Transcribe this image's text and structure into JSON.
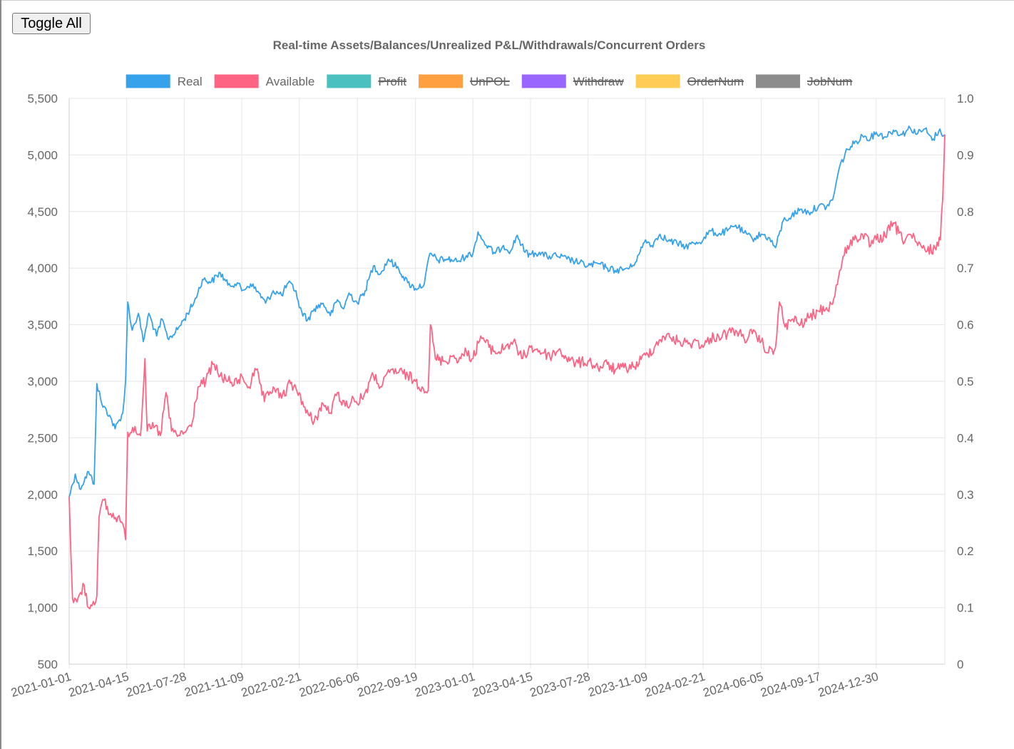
{
  "toolbar": {
    "toggle_all_label": "Toggle All"
  },
  "chart_data": {
    "type": "line",
    "title": "Real-time Assets/Balances/Unrealized P&L/Withdrawals/Concurrent Orders",
    "x_tick_labels": [
      "2021-01-01",
      "2021-04-15",
      "2021-07-28",
      "2021-11-09",
      "2022-02-21",
      "2022-06-06",
      "2022-09-19",
      "2023-01-01",
      "2023-04-15",
      "2023-07-28",
      "2023-11-09",
      "2024-02-21",
      "2024-06-05",
      "2024-09-17",
      "2024-12-30"
    ],
    "x_range": [
      "2021-01-01",
      "2025-05-03"
    ],
    "y_left": {
      "min": 500,
      "max": 5500,
      "ticks": [
        "500",
        "1,000",
        "1,500",
        "2,000",
        "2,500",
        "3,000",
        "3,500",
        "4,000",
        "4,500",
        "5,000",
        "5,500"
      ]
    },
    "y_right": {
      "min": 0,
      "max": 1.0,
      "ticks": [
        "0",
        "0.1",
        "0.2",
        "0.3",
        "0.4",
        "0.5",
        "0.6",
        "0.7",
        "0.8",
        "0.9",
        "1.0"
      ]
    },
    "grid": true,
    "legend_position": "top",
    "legend": [
      {
        "name": "Real",
        "color": "#36a2eb",
        "hidden": false
      },
      {
        "name": "Available",
        "color": "#ff6384",
        "hidden": false
      },
      {
        "name": "Profit",
        "color": "#4bc0c0",
        "hidden": true
      },
      {
        "name": "UnPOL",
        "color": "#ff9f40",
        "hidden": true
      },
      {
        "name": "Withdraw",
        "color": "#9966ff",
        "hidden": true
      },
      {
        "name": "OrderNum",
        "color": "#ffcd56",
        "hidden": true
      },
      {
        "name": "JobNum",
        "color": "#8c8c8c",
        "hidden": true
      }
    ],
    "series": [
      {
        "name": "Real",
        "color": "#36a2eb",
        "points": [
          [
            "2021-01-01",
            1980
          ],
          [
            "2021-01-12",
            2180
          ],
          [
            "2021-01-20",
            2050
          ],
          [
            "2021-02-05",
            2200
          ],
          [
            "2021-02-15",
            2090
          ],
          [
            "2021-02-20",
            2980
          ],
          [
            "2021-03-01",
            2800
          ],
          [
            "2021-03-15",
            2700
          ],
          [
            "2021-03-25",
            2580
          ],
          [
            "2021-04-08",
            2720
          ],
          [
            "2021-04-13",
            3000
          ],
          [
            "2021-04-17",
            3700
          ],
          [
            "2021-04-25",
            3450
          ],
          [
            "2021-05-06",
            3600
          ],
          [
            "2021-05-15",
            3350
          ],
          [
            "2021-05-25",
            3600
          ],
          [
            "2021-06-08",
            3400
          ],
          [
            "2021-06-18",
            3550
          ],
          [
            "2021-06-28",
            3380
          ],
          [
            "2021-07-12",
            3430
          ],
          [
            "2021-07-28",
            3550
          ],
          [
            "2021-08-15",
            3700
          ],
          [
            "2021-08-30",
            3900
          ],
          [
            "2021-09-15",
            3880
          ],
          [
            "2021-10-01",
            3960
          ],
          [
            "2021-10-15",
            3850
          ],
          [
            "2021-11-01",
            3870
          ],
          [
            "2021-11-09",
            3800
          ],
          [
            "2021-11-25",
            3860
          ],
          [
            "2021-12-10",
            3780
          ],
          [
            "2021-12-22",
            3690
          ],
          [
            "2022-01-05",
            3800
          ],
          [
            "2022-01-20",
            3760
          ],
          [
            "2022-02-01",
            3870
          ],
          [
            "2022-02-15",
            3800
          ],
          [
            "2022-02-21",
            3650
          ],
          [
            "2022-03-08",
            3540
          ],
          [
            "2022-03-20",
            3640
          ],
          [
            "2022-04-05",
            3690
          ],
          [
            "2022-04-18",
            3580
          ],
          [
            "2022-05-01",
            3720
          ],
          [
            "2022-05-12",
            3640
          ],
          [
            "2022-05-22",
            3780
          ],
          [
            "2022-06-06",
            3690
          ],
          [
            "2022-06-20",
            3800
          ],
          [
            "2022-07-05",
            4020
          ],
          [
            "2022-07-18",
            3950
          ],
          [
            "2022-08-01",
            4080
          ],
          [
            "2022-08-20",
            3990
          ],
          [
            "2022-09-05",
            3870
          ],
          [
            "2022-09-19",
            3820
          ],
          [
            "2022-10-05",
            3860
          ],
          [
            "2022-10-15",
            4130
          ],
          [
            "2022-10-30",
            4070
          ],
          [
            "2022-11-15",
            4080
          ],
          [
            "2022-12-05",
            4060
          ],
          [
            "2022-12-20",
            4110
          ],
          [
            "2023-01-01",
            4130
          ],
          [
            "2023-01-10",
            4320
          ],
          [
            "2023-01-25",
            4200
          ],
          [
            "2023-02-10",
            4130
          ],
          [
            "2023-02-25",
            4200
          ],
          [
            "2023-03-10",
            4150
          ],
          [
            "2023-03-22",
            4290
          ],
          [
            "2023-04-05",
            4140
          ],
          [
            "2023-04-15",
            4120
          ],
          [
            "2023-05-01",
            4140
          ],
          [
            "2023-05-15",
            4100
          ],
          [
            "2023-06-01",
            4110
          ],
          [
            "2023-06-20",
            4080
          ],
          [
            "2023-07-05",
            4060
          ],
          [
            "2023-07-28",
            4020
          ],
          [
            "2023-08-15",
            4040
          ],
          [
            "2023-09-01",
            4000
          ],
          [
            "2023-09-15",
            3980
          ],
          [
            "2023-10-01",
            3990
          ],
          [
            "2023-10-15",
            4010
          ],
          [
            "2023-10-28",
            4120
          ],
          [
            "2023-11-09",
            4250
          ],
          [
            "2023-11-20",
            4200
          ],
          [
            "2023-12-05",
            4300
          ],
          [
            "2023-12-20",
            4240
          ],
          [
            "2024-01-05",
            4220
          ],
          [
            "2024-01-20",
            4190
          ],
          [
            "2024-02-05",
            4220
          ],
          [
            "2024-02-21",
            4250
          ],
          [
            "2024-03-05",
            4330
          ],
          [
            "2024-03-20",
            4300
          ],
          [
            "2024-04-05",
            4330
          ],
          [
            "2024-04-20",
            4380
          ],
          [
            "2024-05-05",
            4310
          ],
          [
            "2024-05-20",
            4260
          ],
          [
            "2024-06-05",
            4300
          ],
          [
            "2024-06-18",
            4270
          ],
          [
            "2024-07-01",
            4180
          ],
          [
            "2024-07-15",
            4420
          ],
          [
            "2024-07-30",
            4460
          ],
          [
            "2024-08-15",
            4520
          ],
          [
            "2024-08-30",
            4490
          ],
          [
            "2024-09-17",
            4550
          ],
          [
            "2024-10-01",
            4540
          ],
          [
            "2024-10-12",
            4600
          ],
          [
            "2024-10-25",
            4900
          ],
          [
            "2024-11-08",
            5050
          ],
          [
            "2024-11-20",
            5100
          ],
          [
            "2024-12-05",
            5170
          ],
          [
            "2024-12-20",
            5150
          ],
          [
            "2024-12-30",
            5200
          ],
          [
            "2025-01-15",
            5160
          ],
          [
            "2025-01-30",
            5220
          ],
          [
            "2025-02-15",
            5180
          ],
          [
            "2025-03-01",
            5240
          ],
          [
            "2025-03-15",
            5190
          ],
          [
            "2025-03-28",
            5230
          ],
          [
            "2025-04-10",
            5130
          ],
          [
            "2025-04-22",
            5210
          ],
          [
            "2025-05-03",
            5180
          ]
        ]
      },
      {
        "name": "Available",
        "color": "#ff6384",
        "points": [
          [
            "2021-01-01",
            1980
          ],
          [
            "2021-01-04",
            1500
          ],
          [
            "2021-01-07",
            1080
          ],
          [
            "2021-01-15",
            1050
          ],
          [
            "2021-01-28",
            1200
          ],
          [
            "2021-02-05",
            1000
          ],
          [
            "2021-02-20",
            1100
          ],
          [
            "2021-02-24",
            1800
          ],
          [
            "2021-03-05",
            1950
          ],
          [
            "2021-03-15",
            1820
          ],
          [
            "2021-03-30",
            1800
          ],
          [
            "2021-04-08",
            1740
          ],
          [
            "2021-04-13",
            1600
          ],
          [
            "2021-04-17",
            2550
          ],
          [
            "2021-04-30",
            2600
          ],
          [
            "2021-05-10",
            2520
          ],
          [
            "2021-05-18",
            3200
          ],
          [
            "2021-05-22",
            2560
          ],
          [
            "2021-06-05",
            2600
          ],
          [
            "2021-06-15",
            2520
          ],
          [
            "2021-06-25",
            2900
          ],
          [
            "2021-07-05",
            2560
          ],
          [
            "2021-07-20",
            2520
          ],
          [
            "2021-07-28",
            2550
          ],
          [
            "2021-08-10",
            2600
          ],
          [
            "2021-08-22",
            2950
          ],
          [
            "2021-09-05",
            3000
          ],
          [
            "2021-09-18",
            3150
          ],
          [
            "2021-10-01",
            3050
          ],
          [
            "2021-10-15",
            3000
          ],
          [
            "2021-11-01",
            2980
          ],
          [
            "2021-11-09",
            3050
          ],
          [
            "2021-11-22",
            2950
          ],
          [
            "2021-12-05",
            3100
          ],
          [
            "2021-12-20",
            2820
          ],
          [
            "2022-01-05",
            2950
          ],
          [
            "2022-01-20",
            2850
          ],
          [
            "2022-02-05",
            2980
          ],
          [
            "2022-02-21",
            2900
          ],
          [
            "2022-03-05",
            2720
          ],
          [
            "2022-03-20",
            2650
          ],
          [
            "2022-04-05",
            2800
          ],
          [
            "2022-04-18",
            2720
          ],
          [
            "2022-05-01",
            2900
          ],
          [
            "2022-05-15",
            2780
          ],
          [
            "2022-05-30",
            2850
          ],
          [
            "2022-06-06",
            2800
          ],
          [
            "2022-06-20",
            2900
          ],
          [
            "2022-07-05",
            3050
          ],
          [
            "2022-07-20",
            2950
          ],
          [
            "2022-08-05",
            3100
          ],
          [
            "2022-08-20",
            3080
          ],
          [
            "2022-09-05",
            3050
          ],
          [
            "2022-09-19",
            3000
          ],
          [
            "2022-10-01",
            2950
          ],
          [
            "2022-10-12",
            2920
          ],
          [
            "2022-10-16",
            3500
          ],
          [
            "2022-10-25",
            3200
          ],
          [
            "2022-11-10",
            3180
          ],
          [
            "2022-11-25",
            3220
          ],
          [
            "2022-12-10",
            3200
          ],
          [
            "2022-12-20",
            3260
          ],
          [
            "2023-01-01",
            3200
          ],
          [
            "2023-01-15",
            3400
          ],
          [
            "2023-01-30",
            3300
          ],
          [
            "2023-02-15",
            3250
          ],
          [
            "2023-03-01",
            3310
          ],
          [
            "2023-03-15",
            3350
          ],
          [
            "2023-03-30",
            3200
          ],
          [
            "2023-04-15",
            3300
          ],
          [
            "2023-05-01",
            3270
          ],
          [
            "2023-05-20",
            3220
          ],
          [
            "2023-06-05",
            3280
          ],
          [
            "2023-06-25",
            3180
          ],
          [
            "2023-07-10",
            3160
          ],
          [
            "2023-07-28",
            3180
          ],
          [
            "2023-08-15",
            3120
          ],
          [
            "2023-09-01",
            3150
          ],
          [
            "2023-09-15",
            3100
          ],
          [
            "2023-10-01",
            3120
          ],
          [
            "2023-10-20",
            3130
          ],
          [
            "2023-11-09",
            3230
          ],
          [
            "2023-11-25",
            3300
          ],
          [
            "2023-12-10",
            3400
          ],
          [
            "2023-12-25",
            3380
          ],
          [
            "2024-01-10",
            3350
          ],
          [
            "2024-01-25",
            3330
          ],
          [
            "2024-02-10",
            3360
          ],
          [
            "2024-02-21",
            3300
          ],
          [
            "2024-03-05",
            3380
          ],
          [
            "2024-03-20",
            3400
          ],
          [
            "2024-04-05",
            3420
          ],
          [
            "2024-04-20",
            3450
          ],
          [
            "2024-05-05",
            3380
          ],
          [
            "2024-05-20",
            3420
          ],
          [
            "2024-06-05",
            3350
          ],
          [
            "2024-06-18",
            3250
          ],
          [
            "2024-07-01",
            3300
          ],
          [
            "2024-07-08",
            3700
          ],
          [
            "2024-07-18",
            3480
          ],
          [
            "2024-08-01",
            3550
          ],
          [
            "2024-08-15",
            3500
          ],
          [
            "2024-08-30",
            3560
          ],
          [
            "2024-09-17",
            3620
          ],
          [
            "2024-10-01",
            3650
          ],
          [
            "2024-10-12",
            3680
          ],
          [
            "2024-10-25",
            3980
          ],
          [
            "2024-11-08",
            4200
          ],
          [
            "2024-11-20",
            4250
          ],
          [
            "2024-12-05",
            4300
          ],
          [
            "2024-12-20",
            4200
          ],
          [
            "2024-12-30",
            4250
          ],
          [
            "2025-01-15",
            4280
          ],
          [
            "2025-01-30",
            4400
          ],
          [
            "2025-02-15",
            4250
          ],
          [
            "2025-03-01",
            4300
          ],
          [
            "2025-03-15",
            4200
          ],
          [
            "2025-04-01",
            4150
          ],
          [
            "2025-04-15",
            4180
          ],
          [
            "2025-04-25",
            4250
          ],
          [
            "2025-04-29",
            4600
          ],
          [
            "2025-05-03",
            5180
          ]
        ]
      }
    ]
  }
}
